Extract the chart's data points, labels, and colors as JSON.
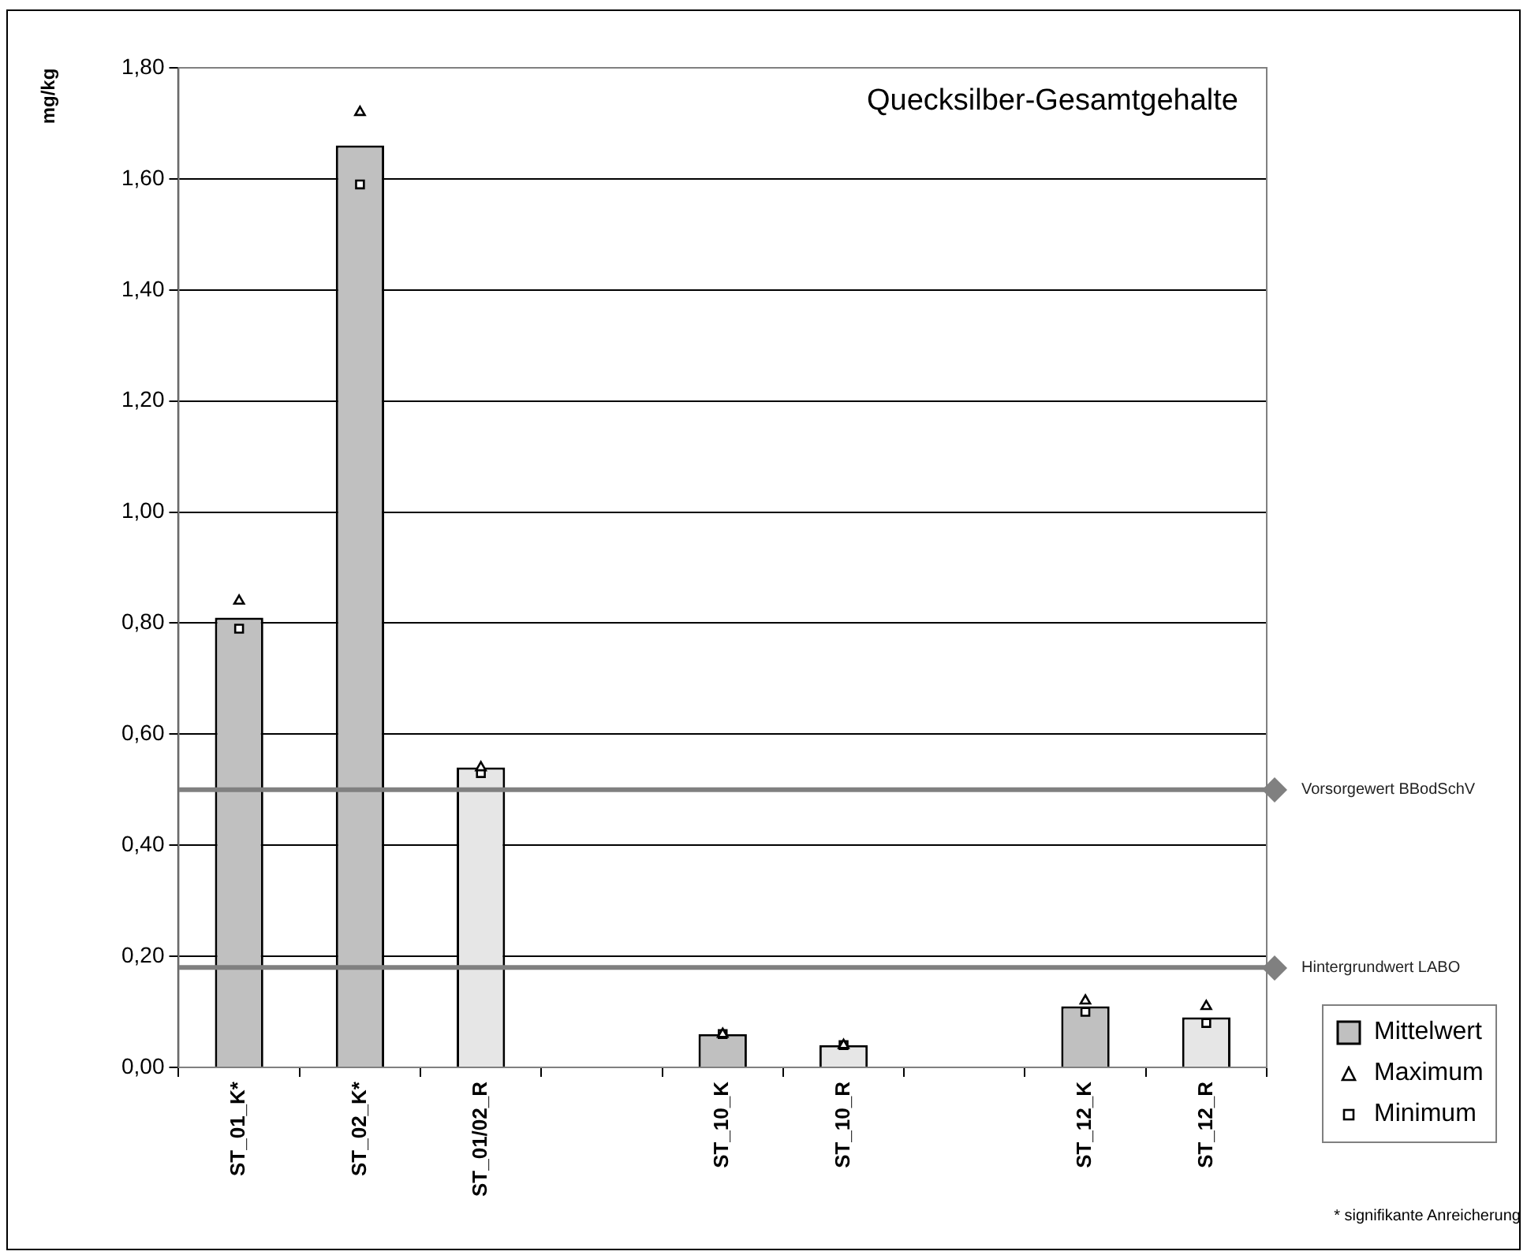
{
  "chart_data": {
    "type": "bar",
    "title": "Quecksilber-Gesamtgehalte",
    "ylabel": "mg/kg",
    "categories": [
      "ST_01_K*",
      "ST_02_K*",
      "ST_01/02_R",
      null,
      "ST_10_K",
      "ST_10_R",
      null,
      "ST_12_K",
      "ST_12_R"
    ],
    "series": [
      {
        "name": "Mittelwert",
        "color": "#c0c0c0",
        "colors": [
          "#c0c0c0",
          "#c0c0c0",
          "#e6e6e6",
          "#c0c0c0",
          "#c0c0c0",
          "#e6e6e6",
          "#c0c0c0",
          "#c0c0c0",
          "#e6e6e6"
        ],
        "values": [
          0.81,
          1.66,
          0.54,
          null,
          0.06,
          0.04,
          null,
          0.11,
          0.09
        ]
      },
      {
        "name": "Maximum",
        "type": "scatter",
        "marker": "triangle",
        "color": "#000000",
        "x": [
          "ST_01_K*",
          "ST_02_K*",
          "ST_01/02_R",
          "ST_10_K",
          "ST_10_R",
          "ST_12_K",
          "ST_12_R"
        ],
        "values": [
          0.84,
          1.72,
          0.54,
          0.06,
          0.04,
          0.12,
          0.11
        ]
      },
      {
        "name": "Minimum",
        "type": "scatter",
        "marker": "square",
        "color": "#000000",
        "x": [
          "ST_01_K*",
          "ST_02_K*",
          "ST_01/02_R",
          "ST_10_K",
          "ST_10_R",
          "ST_12_K",
          "ST_12_R"
        ],
        "values": [
          0.79,
          1.59,
          0.53,
          0.06,
          0.04,
          0.1,
          0.08
        ]
      }
    ],
    "ylim": [
      0,
      1.8
    ],
    "yticks": [
      {
        "value": 0,
        "label": "0,00"
      },
      {
        "value": 0.2,
        "label": "0,20"
      },
      {
        "value": 0.4,
        "label": "0,40"
      },
      {
        "value": 0.6,
        "label": "0,60"
      },
      {
        "value": 0.8,
        "label": "0,80"
      },
      {
        "value": 1,
        "label": "1,00"
      },
      {
        "value": 1.2,
        "label": "1,20"
      },
      {
        "value": 1.4,
        "label": "1,40"
      },
      {
        "value": 1.6,
        "label": "1,60"
      },
      {
        "value": 1.8,
        "label": "1,80"
      }
    ],
    "grid": "y",
    "legend": "bottom right",
    "ref_lines": [
      {
        "axis": "y",
        "value": 0.5,
        "label": "Vorsorgewert BBodSchV",
        "color": "#808080"
      },
      {
        "axis": "y",
        "value": 0.18,
        "label": "Hintergrundwert LABO",
        "color": "#808080"
      }
    ],
    "annotations": [
      "* signifikante Anreicherung"
    ]
  }
}
